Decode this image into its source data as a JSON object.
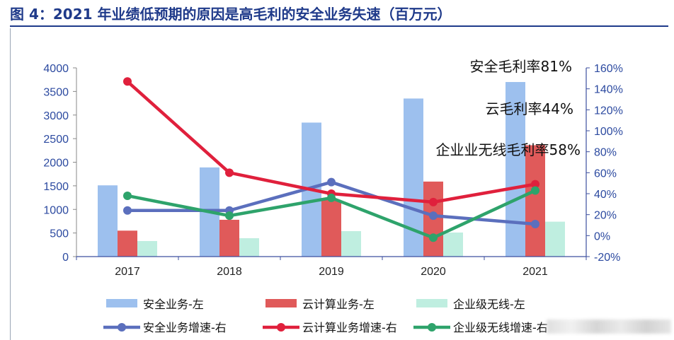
{
  "figure_title": "图 4：2021 年业绩低预期的原因是高毛利的安全业务失速（百万元）",
  "chart_data": {
    "type": "bar",
    "categories": [
      "2017",
      "2018",
      "2019",
      "2020",
      "2021"
    ],
    "bar_series": [
      {
        "name": "安全业务-左",
        "color": "#9dc0ee",
        "values": [
          1510,
          1890,
          2840,
          3350,
          3700
        ]
      },
      {
        "name": "云计算业务-左",
        "color": "#e05a5a",
        "values": [
          550,
          780,
          1200,
          1590,
          2360
        ]
      },
      {
        "name": "企业级无线-左",
        "color": "#bfeee0",
        "values": [
          330,
          390,
          540,
          510,
          740
        ]
      }
    ],
    "line_series": [
      {
        "name": "安全业务增速-右",
        "color": "#5b6fbd",
        "values": [
          24,
          24,
          51,
          19,
          11
        ]
      },
      {
        "name": "云计算业务增速-右",
        "color": "#e0203c",
        "values": [
          147,
          60,
          40,
          32,
          49
        ]
      },
      {
        "name": "企业级无线增速-右",
        "color": "#2ea36b",
        "values": [
          38,
          19,
          36,
          -2,
          43
        ]
      }
    ],
    "y_left": {
      "min": 0,
      "max": 4000,
      "step": 500,
      "ticks": [
        "0",
        "500",
        "1000",
        "1500",
        "2000",
        "2500",
        "3000",
        "3500",
        "4000"
      ]
    },
    "y_right": {
      "min": -20,
      "max": 160,
      "step": 20,
      "ticks": [
        "-20%",
        "0%",
        "20%",
        "40%",
        "60%",
        "80%",
        "100%",
        "120%",
        "140%",
        "160%"
      ]
    },
    "annotations": [
      "安全毛利率81%",
      "云毛利率44%",
      "企业业无线毛利率58%"
    ],
    "legend_position": "bottom",
    "grid": false
  }
}
